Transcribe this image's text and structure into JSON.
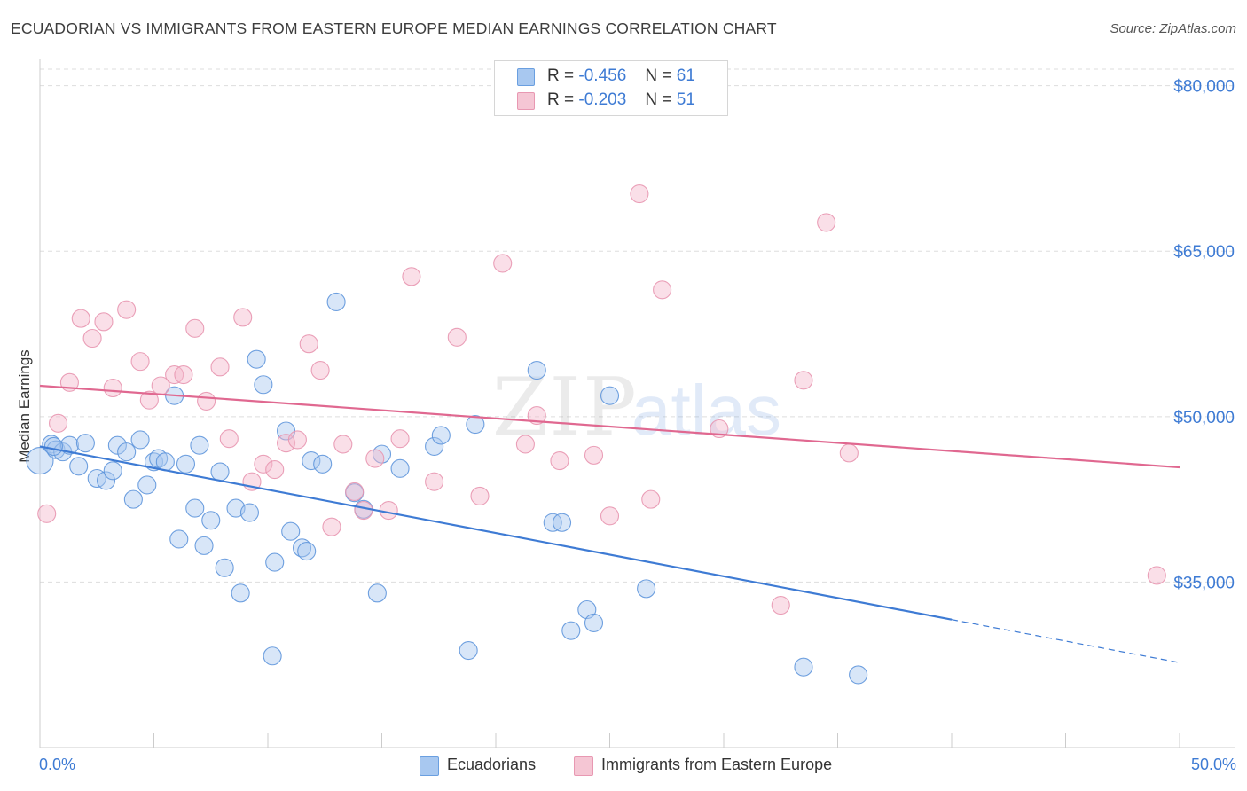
{
  "header": {
    "title": "ECUADORIAN VS IMMIGRANTS FROM EASTERN EUROPE MEDIAN EARNINGS CORRELATION CHART",
    "source": "Source: ZipAtlas.com"
  },
  "watermark": "ZIPatlas",
  "colors": {
    "blue": "#3e7bd4",
    "blue_fill": "#a8c8f0",
    "pink": "#e06890",
    "pink_fill": "#f5b8cb",
    "grid": "#dddddd"
  },
  "legend_top": [
    {
      "r_label": "R =",
      "r_value": "-0.456",
      "n_label": "N =",
      "n_value": "61",
      "color": "blue"
    },
    {
      "r_label": "R =",
      "r_value": "-0.203",
      "n_label": "N =",
      "n_value": "51",
      "color": "pink"
    }
  ],
  "legend_bottom": [
    {
      "label": "Ecuadorians",
      "color": "blue"
    },
    {
      "label": "Immigrants from Eastern Europe",
      "color": "pink"
    }
  ],
  "chart_data": {
    "type": "scatter",
    "title": "ECUADORIAN VS IMMIGRANTS FROM EASTERN EUROPE MEDIAN EARNINGS CORRELATION CHART",
    "xlabel": "",
    "ylabel": "Median Earnings",
    "xlim": [
      0,
      50
    ],
    "ylim": [
      20000,
      81500
    ],
    "x_tick_labels": [
      "0.0%",
      "50.0%"
    ],
    "y_ticks": [
      35000,
      50000,
      65000,
      80000
    ],
    "y_tick_labels": [
      "$35,000",
      "$50,000",
      "$65,000",
      "$80,000"
    ],
    "grid": "horizontal dashed",
    "legend": "top-center",
    "series": [
      {
        "name": "Ecuadorians",
        "color": "blue",
        "points": [
          [
            0.0,
            46000
          ],
          [
            0.5,
            47500
          ],
          [
            0.7,
            47000
          ],
          [
            1.0,
            46800
          ],
          [
            1.3,
            47400
          ],
          [
            1.7,
            45500
          ],
          [
            2.0,
            47600
          ],
          [
            2.5,
            44400
          ],
          [
            2.9,
            44200
          ],
          [
            3.2,
            45100
          ],
          [
            3.4,
            47400
          ],
          [
            3.8,
            46800
          ],
          [
            4.1,
            42500
          ],
          [
            4.4,
            47900
          ],
          [
            4.7,
            43800
          ],
          [
            5.0,
            45900
          ],
          [
            5.2,
            46200
          ],
          [
            5.5,
            45900
          ],
          [
            5.9,
            51900
          ],
          [
            6.1,
            38900
          ],
          [
            6.4,
            45700
          ],
          [
            6.8,
            41700
          ],
          [
            7.0,
            47400
          ],
          [
            7.2,
            38300
          ],
          [
            7.5,
            40600
          ],
          [
            7.9,
            45000
          ],
          [
            8.1,
            36300
          ],
          [
            8.6,
            41700
          ],
          [
            8.8,
            34000
          ],
          [
            9.2,
            41300
          ],
          [
            9.5,
            55200
          ],
          [
            9.8,
            52900
          ],
          [
            10.3,
            36800
          ],
          [
            10.2,
            28300
          ],
          [
            10.8,
            48700
          ],
          [
            11.0,
            39600
          ],
          [
            11.5,
            38100
          ],
          [
            11.7,
            37800
          ],
          [
            11.9,
            46000
          ],
          [
            12.4,
            45700
          ],
          [
            13.0,
            60400
          ],
          [
            13.8,
            43100
          ],
          [
            14.2,
            41600
          ],
          [
            14.8,
            34000
          ],
          [
            15.0,
            46600
          ],
          [
            15.8,
            45300
          ],
          [
            17.3,
            47300
          ],
          [
            17.6,
            48300
          ],
          [
            18.8,
            28800
          ],
          [
            19.1,
            49300
          ],
          [
            21.8,
            54200
          ],
          [
            22.5,
            40400
          ],
          [
            22.9,
            40400
          ],
          [
            23.3,
            30600
          ],
          [
            24.0,
            32500
          ],
          [
            24.3,
            31300
          ],
          [
            25.0,
            51900
          ],
          [
            26.6,
            34400
          ],
          [
            33.5,
            27300
          ],
          [
            35.9,
            26600
          ],
          [
            0.6,
            47300
          ]
        ]
      },
      {
        "name": "Immigrants from Eastern Europe",
        "color": "pink",
        "points": [
          [
            0.3,
            41200
          ],
          [
            0.8,
            49400
          ],
          [
            1.3,
            53100
          ],
          [
            1.8,
            58900
          ],
          [
            2.3,
            57100
          ],
          [
            2.8,
            58600
          ],
          [
            3.2,
            52600
          ],
          [
            3.8,
            59700
          ],
          [
            4.4,
            55000
          ],
          [
            4.8,
            51500
          ],
          [
            5.3,
            52800
          ],
          [
            5.9,
            53800
          ],
          [
            6.3,
            53800
          ],
          [
            6.8,
            58000
          ],
          [
            7.3,
            51400
          ],
          [
            7.9,
            54500
          ],
          [
            8.3,
            48000
          ],
          [
            8.9,
            59000
          ],
          [
            9.3,
            44100
          ],
          [
            9.8,
            45700
          ],
          [
            10.3,
            45200
          ],
          [
            10.8,
            47600
          ],
          [
            11.3,
            47900
          ],
          [
            11.8,
            56600
          ],
          [
            12.3,
            54200
          ],
          [
            12.8,
            40000
          ],
          [
            13.3,
            47500
          ],
          [
            13.8,
            43200
          ],
          [
            14.2,
            41500
          ],
          [
            14.7,
            46200
          ],
          [
            15.3,
            41500
          ],
          [
            15.8,
            48000
          ],
          [
            16.3,
            62700
          ],
          [
            17.3,
            44100
          ],
          [
            18.3,
            57200
          ],
          [
            19.3,
            42800
          ],
          [
            20.3,
            63900
          ],
          [
            21.3,
            47500
          ],
          [
            21.8,
            50100
          ],
          [
            22.8,
            46000
          ],
          [
            24.3,
            46500
          ],
          [
            25.0,
            41000
          ],
          [
            26.3,
            70200
          ],
          [
            26.8,
            42500
          ],
          [
            27.3,
            61500
          ],
          [
            29.8,
            48900
          ],
          [
            32.5,
            32900
          ],
          [
            33.5,
            53300
          ],
          [
            34.5,
            67600
          ],
          [
            35.5,
            46700
          ],
          [
            49.0,
            35600
          ]
        ]
      }
    ],
    "trend_lines": [
      {
        "series": "Ecuadorians",
        "color": "blue",
        "x1": 0.0,
        "y1": 47300,
        "x2": 40.0,
        "y2": 31600,
        "dashed_to_x": 50.0,
        "dashed_to_y": 27700
      },
      {
        "series": "Immigrants from Eastern Europe",
        "color": "pink",
        "x1": 0.0,
        "y1": 52800,
        "x2": 50.0,
        "y2": 45400
      }
    ]
  }
}
